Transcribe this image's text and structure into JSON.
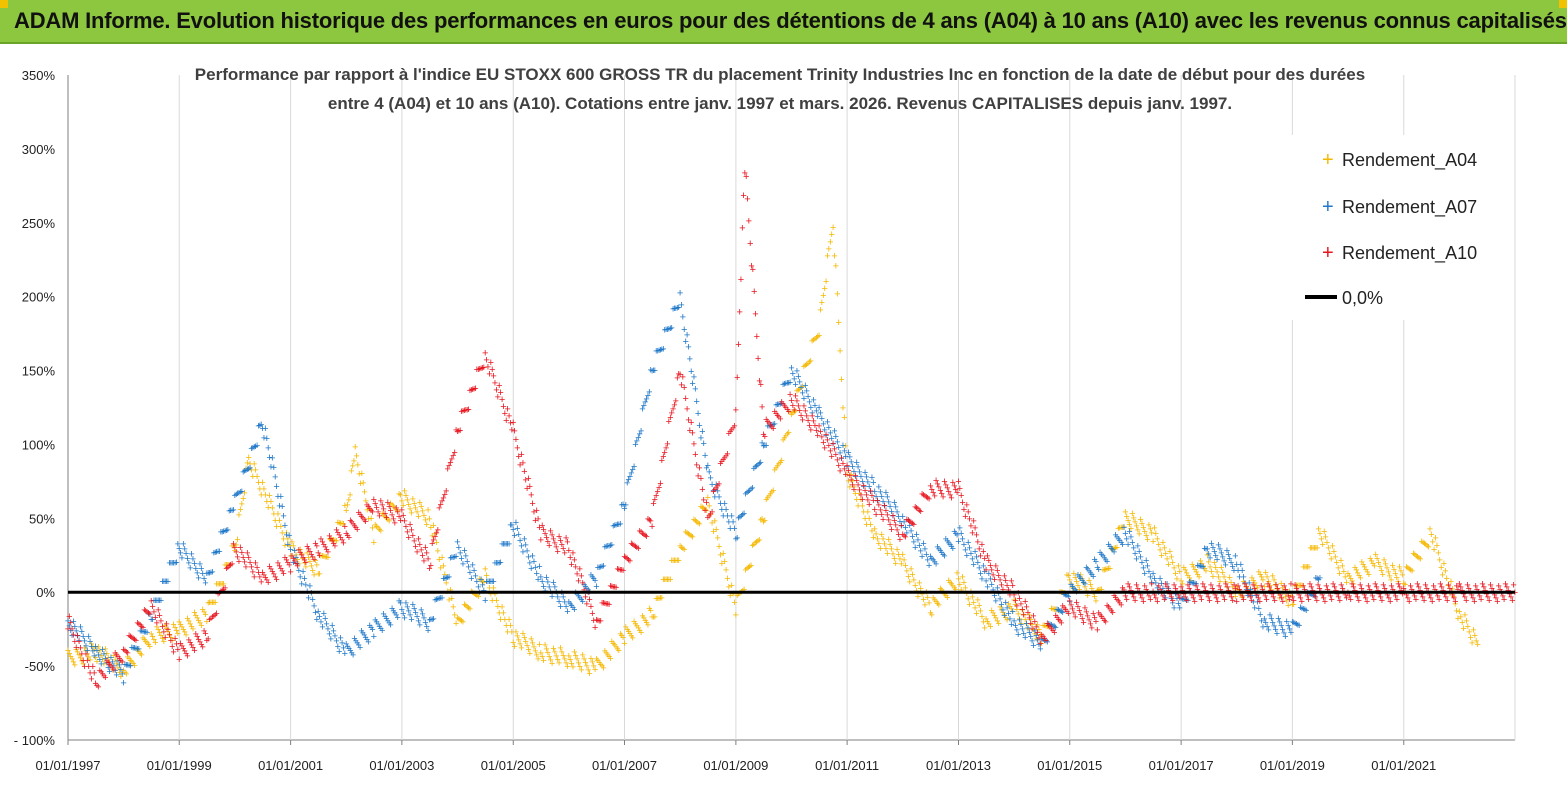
{
  "banner": {
    "title": "ADAM Informe. Evolution historique des performances en euros pour des détentions de 4 ans (A04) à 10 ans (A10) avec les revenus connus capitalisés",
    "background": "#8dc63f",
    "corner_color": "#f2c200"
  },
  "chart_data": {
    "type": "scatter",
    "title_lines": [
      "Performance par rapport à l'indice EU STOXX 600 GROSS TR  du placement Trinity Industries Inc en fonction de la date de début pour des durées",
      "entre 4 (A04) et 10 ans (A10). Cotations entre janv. 1997 et mars. 2026. Revenus CAPITALISES depuis janv. 1997."
    ],
    "xlabel": "",
    "ylabel": "",
    "x_range": [
      "1997-01-01",
      "2023-01-01"
    ],
    "ylim": [
      -100,
      350
    ],
    "y_unit": "%",
    "y_ticks": [
      -100,
      -50,
      0,
      50,
      100,
      150,
      200,
      250,
      300,
      350
    ],
    "y_tick_labels": [
      "- 100%",
      "-50%",
      "0%",
      "50%",
      "100%",
      "150%",
      "200%",
      "250%",
      "300%",
      "350%"
    ],
    "x_tick_labels": [
      "01/01/1997",
      "01/01/1999",
      "01/01/2001",
      "01/01/2003",
      "01/01/2005",
      "01/01/2007",
      "01/01/2009",
      "01/01/2011",
      "01/01/2013",
      "01/01/2015",
      "01/01/2017",
      "01/01/2019",
      "01/01/2021"
    ],
    "grid": "vertical",
    "legend_position": "top-right",
    "marker": "+",
    "reference_line": {
      "name": "0,0%",
      "y": 0,
      "color": "#000000"
    },
    "series": [
      {
        "name": "Rendement_A04",
        "color": "#f5b800",
        "x": [
          "1997-01-01",
          "1997-07-01",
          "1998-01-01",
          "1998-07-01",
          "1999-01-01",
          "1999-07-01",
          "2000-01-01",
          "2000-04-01",
          "2000-07-01",
          "2001-01-01",
          "2001-07-01",
          "2002-01-01",
          "2002-03-01",
          "2002-07-01",
          "2003-01-01",
          "2003-07-01",
          "2004-01-01",
          "2004-07-01",
          "2005-01-01",
          "2005-07-01",
          "2006-01-01",
          "2006-07-01",
          "2007-01-01",
          "2007-07-01",
          "2008-01-01",
          "2008-07-01",
          "2009-01-01",
          "2009-07-01",
          "2010-01-01",
          "2010-04-01",
          "2010-07-01",
          "2010-10-01",
          "2011-01-01",
          "2011-07-01",
          "2012-01-01",
          "2012-07-01",
          "2013-01-01",
          "2013-07-01",
          "2014-01-01",
          "2014-07-01",
          "2015-01-01",
          "2015-07-01",
          "2016-01-01",
          "2016-07-01",
          "2017-01-01",
          "2017-07-01",
          "2018-01-01",
          "2018-07-01",
          "2019-01-01",
          "2019-07-01",
          "2020-01-01",
          "2020-07-01",
          "2021-01-01",
          "2021-07-01",
          "2022-01-01",
          "2022-05-01"
        ],
        "values": [
          -45,
          -40,
          -52,
          -30,
          -25,
          -15,
          30,
          90,
          70,
          30,
          15,
          55,
          95,
          40,
          65,
          50,
          -20,
          10,
          -30,
          -40,
          -45,
          -50,
          -30,
          -15,
          30,
          60,
          -10,
          50,
          120,
          150,
          180,
          250,
          80,
          40,
          20,
          -10,
          10,
          -20,
          -10,
          -30,
          10,
          0,
          50,
          40,
          10,
          20,
          0,
          10,
          -5,
          40,
          10,
          20,
          10,
          40,
          -15,
          -35
        ]
      },
      {
        "name": "Rendement_A07",
        "color": "#1f78c8",
        "x": [
          "1997-01-01",
          "1997-07-01",
          "1998-01-01",
          "1998-07-01",
          "1999-01-01",
          "1999-07-01",
          "2000-01-01",
          "2000-07-01",
          "2001-01-01",
          "2001-07-01",
          "2002-01-01",
          "2002-07-01",
          "2003-01-01",
          "2003-07-01",
          "2004-01-01",
          "2004-07-01",
          "2005-01-01",
          "2005-07-01",
          "2006-01-01",
          "2006-07-01",
          "2007-01-01",
          "2007-07-01",
          "2008-01-01",
          "2008-07-01",
          "2009-01-01",
          "2009-07-01",
          "2010-01-01",
          "2010-07-01",
          "2011-01-01",
          "2011-07-01",
          "2012-01-01",
          "2012-07-01",
          "2013-01-01",
          "2013-07-01",
          "2014-01-01",
          "2014-07-01",
          "2015-01-01",
          "2015-07-01",
          "2016-01-01",
          "2016-07-01",
          "2017-01-01",
          "2017-07-01",
          "2018-01-01",
          "2018-07-01",
          "2019-01-01",
          "2019-07-01"
        ],
        "values": [
          -20,
          -40,
          -55,
          -15,
          30,
          10,
          60,
          115,
          30,
          -15,
          -40,
          -25,
          -10,
          -20,
          30,
          0,
          45,
          10,
          -10,
          10,
          60,
          150,
          200,
          80,
          40,
          100,
          150,
          120,
          90,
          70,
          50,
          20,
          40,
          10,
          -20,
          -35,
          0,
          20,
          40,
          10,
          -10,
          30,
          20,
          -20,
          -25,
          10
        ]
      },
      {
        "name": "Rendement_A10",
        "color": "#e8141e",
        "x": [
          "1997-01-01",
          "1997-07-01",
          "1998-01-01",
          "1998-07-01",
          "1999-01-01",
          "1999-07-01",
          "2000-01-01",
          "2000-07-01",
          "2001-01-01",
          "2001-07-01",
          "2002-01-01",
          "2002-07-01",
          "2003-01-01",
          "2003-07-01",
          "2004-01-01",
          "2004-07-01",
          "2005-01-01",
          "2005-07-01",
          "2006-01-01",
          "2006-07-01",
          "2007-01-01",
          "2007-07-01",
          "2008-01-01",
          "2008-07-01",
          "2009-01-01",
          "2009-03-01",
          "2009-07-01",
          "2010-01-01",
          "2010-07-01",
          "2011-01-01",
          "2011-07-01",
          "2012-01-01",
          "2012-07-01",
          "2013-01-01",
          "2013-07-01",
          "2014-01-01",
          "2014-07-01",
          "2015-01-01",
          "2015-07-01",
          "2016-01-01",
          "2016-07-01",
          "2017-01-01",
          "2018-01-01",
          "2019-01-01",
          "2020-01-01",
          "2021-01-01",
          "2022-01-01",
          "2023-01-01"
        ],
        "values": [
          -20,
          -60,
          -40,
          -10,
          -40,
          -30,
          30,
          10,
          20,
          30,
          40,
          60,
          50,
          20,
          110,
          160,
          110,
          40,
          30,
          -20,
          20,
          50,
          150,
          50,
          120,
          290,
          110,
          130,
          110,
          80,
          60,
          40,
          70,
          70,
          20,
          0,
          -30,
          -10,
          -20,
          0,
          0,
          0,
          0,
          0,
          0,
          0,
          0,
          0
        ]
      }
    ]
  }
}
